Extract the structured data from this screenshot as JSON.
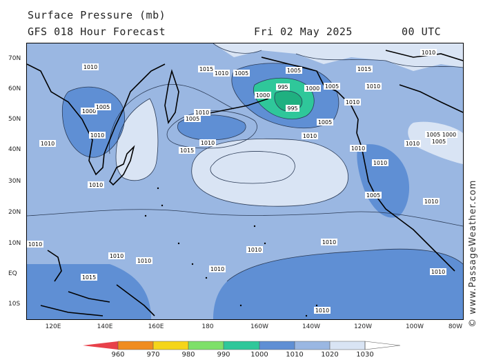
{
  "header": {
    "title": "Surface Pressure (mb)",
    "subtitle": "GFS 018 Hour Forecast",
    "date": "Fri 02 May 2025",
    "time": "00 UTC"
  },
  "credit": "© www.PassageWeather.com",
  "axes": {
    "lat_labels": [
      "70N",
      "60N",
      "50N",
      "40N",
      "30N",
      "20N",
      "10N",
      "EQ",
      "10S"
    ],
    "lon_labels": [
      "120E",
      "140E",
      "160E",
      "180",
      "160W",
      "140W",
      "120W",
      "100W",
      "80W"
    ]
  },
  "legend": {
    "ticks": [
      "960",
      "970",
      "980",
      "990",
      "1000",
      "1010",
      "1020",
      "1030"
    ],
    "colors": [
      "#e8414a",
      "#f08c1f",
      "#f5d51a",
      "#7ee06a",
      "#2fc79a",
      "#5f8fd4",
      "#9ab7e2",
      "#d9e4f4"
    ]
  },
  "map": {
    "ocean_base": "#9ab7e2",
    "low_fill": "#5f8fd4",
    "high_fill": "#d9e4f4",
    "deep_low_fill": "#2fc79a",
    "contour_labels": [
      {
        "id": "l1",
        "text": "1010"
      },
      {
        "id": "l2",
        "text": "1015"
      },
      {
        "id": "l3",
        "text": "1005"
      },
      {
        "id": "l4",
        "text": "1010"
      },
      {
        "id": "l5",
        "text": "1005"
      },
      {
        "id": "l6",
        "text": "1000"
      },
      {
        "id": "l7",
        "text": "995"
      },
      {
        "id": "l8",
        "text": "995"
      },
      {
        "id": "l9",
        "text": "1000"
      },
      {
        "id": "l10",
        "text": "1005"
      },
      {
        "id": "l11",
        "text": "1010"
      },
      {
        "id": "l12",
        "text": "1005"
      },
      {
        "id": "l13",
        "text": "1010"
      },
      {
        "id": "l14",
        "text": "1015"
      },
      {
        "id": "l15",
        "text": "1010"
      },
      {
        "id": "l16",
        "text": "1010"
      },
      {
        "id": "l17",
        "text": "1005"
      },
      {
        "id": "l18",
        "text": "1000"
      },
      {
        "id": "l19",
        "text": "1005"
      },
      {
        "id": "l20",
        "text": "1010"
      },
      {
        "id": "l21",
        "text": "1010"
      },
      {
        "id": "l22",
        "text": "1010"
      },
      {
        "id": "l23",
        "text": "1010"
      },
      {
        "id": "l24",
        "text": "1015"
      },
      {
        "id": "l25",
        "text": "1010"
      },
      {
        "id": "l26",
        "text": "1010"
      },
      {
        "id": "l27",
        "text": "1010"
      },
      {
        "id": "l28",
        "text": "1010"
      },
      {
        "id": "l29",
        "text": "1010"
      },
      {
        "id": "l30",
        "text": "1015"
      },
      {
        "id": "l31",
        "text": "1010"
      },
      {
        "id": "l32",
        "text": "1010"
      },
      {
        "id": "l33",
        "text": "1005"
      },
      {
        "id": "l34",
        "text": "1010"
      },
      {
        "id": "l35",
        "text": "1010"
      },
      {
        "id": "l36",
        "text": "1010"
      },
      {
        "id": "l37",
        "text": "1010"
      },
      {
        "id": "l38",
        "text": "1010"
      },
      {
        "id": "l39",
        "text": "1000"
      },
      {
        "id": "l40",
        "text": "1005"
      },
      {
        "id": "l41",
        "text": "1005"
      },
      {
        "id": "l42",
        "text": "1010"
      }
    ]
  }
}
